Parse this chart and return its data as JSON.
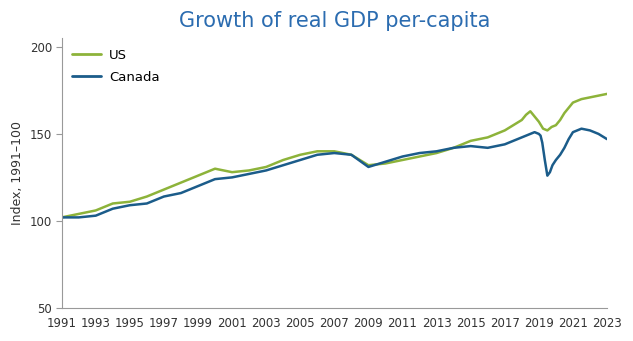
{
  "title": "Growth of real GDP per-capita",
  "ylabel": "Index, 1991–100",
  "xlim": [
    1991,
    2023
  ],
  "ylim": [
    50,
    205
  ],
  "yticks": [
    50,
    100,
    150,
    200
  ],
  "xticks": [
    1991,
    1993,
    1995,
    1997,
    1999,
    2001,
    2003,
    2005,
    2007,
    2009,
    2011,
    2013,
    2015,
    2017,
    2019,
    2021,
    2023
  ],
  "title_color": "#2B6CB0",
  "title_fontsize": 15,
  "ylabel_fontsize": 9,
  "tick_fontsize": 8.5,
  "legend_labels": [
    "US",
    "Canada"
  ],
  "us_color": "#8DB33A",
  "canada_color": "#1B5C8A",
  "line_width": 1.8,
  "us_data": {
    "years": [
      1991,
      1992,
      1993,
      1994,
      1995,
      1996,
      1997,
      1998,
      1999,
      2000,
      2001,
      2002,
      2003,
      2004,
      2005,
      2006,
      2007,
      2008,
      2009,
      2010,
      2011,
      2012,
      2013,
      2014,
      2015,
      2016,
      2017,
      2017.5,
      2018,
      2018.25,
      2018.5,
      2018.75,
      2019,
      2019.25,
      2019.5,
      2019.75,
      2020,
      2020.25,
      2020.5,
      2020.75,
      2021,
      2021.5,
      2022,
      2022.5,
      2023
    ],
    "values": [
      102,
      104,
      106,
      110,
      111,
      114,
      118,
      122,
      126,
      130,
      128,
      129,
      131,
      135,
      138,
      140,
      140,
      138,
      132,
      133,
      135,
      137,
      139,
      142,
      146,
      148,
      152,
      155,
      158,
      161,
      163,
      160,
      157,
      153,
      152,
      154,
      155,
      158,
      162,
      165,
      168,
      170,
      171,
      172,
      173
    ]
  },
  "canada_data": {
    "years": [
      1991,
      1992,
      1993,
      1994,
      1995,
      1996,
      1997,
      1998,
      1999,
      2000,
      2001,
      2002,
      2003,
      2004,
      2005,
      2006,
      2007,
      2008,
      2009,
      2010,
      2011,
      2012,
      2013,
      2014,
      2015,
      2016,
      2017,
      2018,
      2018.5,
      2018.75,
      2019,
      2019.1,
      2019.2,
      2019.35,
      2019.5,
      2019.65,
      2019.8,
      2020,
      2020.25,
      2020.5,
      2020.75,
      2021,
      2021.25,
      2021.5,
      2022,
      2022.5,
      2023
    ],
    "values": [
      102,
      102,
      103,
      107,
      109,
      110,
      114,
      116,
      120,
      124,
      125,
      127,
      129,
      132,
      135,
      138,
      139,
      138,
      131,
      134,
      137,
      139,
      140,
      142,
      143,
      142,
      144,
      148,
      150,
      151,
      150,
      149,
      145,
      135,
      126,
      128,
      132,
      135,
      138,
      142,
      147,
      151,
      152,
      153,
      152,
      150,
      147
    ]
  }
}
